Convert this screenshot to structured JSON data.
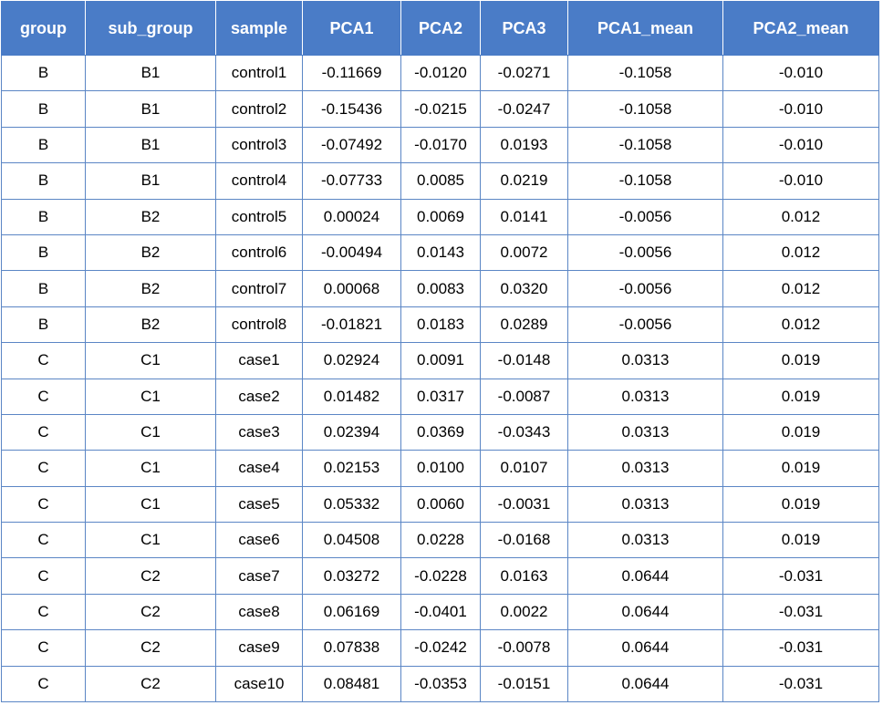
{
  "table": {
    "columns": [
      "group",
      "sub_group",
      "sample",
      "PCA1",
      "PCA2",
      "PCA3",
      "PCA1_mean",
      "PCA2_mean"
    ],
    "rows": [
      [
        "B",
        "B1",
        "control1",
        "-0.11669",
        "-0.0120",
        "-0.0271",
        "-0.1058",
        "-0.010"
      ],
      [
        "B",
        "B1",
        "control2",
        "-0.15436",
        "-0.0215",
        "-0.0247",
        "-0.1058",
        "-0.010"
      ],
      [
        "B",
        "B1",
        "control3",
        "-0.07492",
        "-0.0170",
        "0.0193",
        "-0.1058",
        "-0.010"
      ],
      [
        "B",
        "B1",
        "control4",
        "-0.07733",
        "0.0085",
        "0.0219",
        "-0.1058",
        "-0.010"
      ],
      [
        "B",
        "B2",
        "control5",
        "0.00024",
        "0.0069",
        "0.0141",
        "-0.0056",
        "0.012"
      ],
      [
        "B",
        "B2",
        "control6",
        "-0.00494",
        "0.0143",
        "0.0072",
        "-0.0056",
        "0.012"
      ],
      [
        "B",
        "B2",
        "control7",
        "0.00068",
        "0.0083",
        "0.0320",
        "-0.0056",
        "0.012"
      ],
      [
        "B",
        "B2",
        "control8",
        "-0.01821",
        "0.0183",
        "0.0289",
        "-0.0056",
        "0.012"
      ],
      [
        "C",
        "C1",
        "case1",
        "0.02924",
        "0.0091",
        "-0.0148",
        "0.0313",
        "0.019"
      ],
      [
        "C",
        "C1",
        "case2",
        "0.01482",
        "0.0317",
        "-0.0087",
        "0.0313",
        "0.019"
      ],
      [
        "C",
        "C1",
        "case3",
        "0.02394",
        "0.0369",
        "-0.0343",
        "0.0313",
        "0.019"
      ],
      [
        "C",
        "C1",
        "case4",
        "0.02153",
        "0.0100",
        "0.0107",
        "0.0313",
        "0.019"
      ],
      [
        "C",
        "C1",
        "case5",
        "0.05332",
        "0.0060",
        "-0.0031",
        "0.0313",
        "0.019"
      ],
      [
        "C",
        "C1",
        "case6",
        "0.04508",
        "0.0228",
        "-0.0168",
        "0.0313",
        "0.019"
      ],
      [
        "C",
        "C2",
        "case7",
        "0.03272",
        "-0.0228",
        "0.0163",
        "0.0644",
        "-0.031"
      ],
      [
        "C",
        "C2",
        "case8",
        "0.06169",
        "-0.0401",
        "0.0022",
        "0.0644",
        "-0.031"
      ],
      [
        "C",
        "C2",
        "case9",
        "0.07838",
        "-0.0242",
        "-0.0078",
        "0.0644",
        "-0.031"
      ],
      [
        "C",
        "C2",
        "case10",
        "0.08481",
        "-0.0353",
        "-0.0151",
        "0.0644",
        "-0.031"
      ]
    ]
  },
  "colors": {
    "header_background": "#4a7cc7",
    "header_text": "#ffffff",
    "grid_lines": "#5b86c5"
  }
}
